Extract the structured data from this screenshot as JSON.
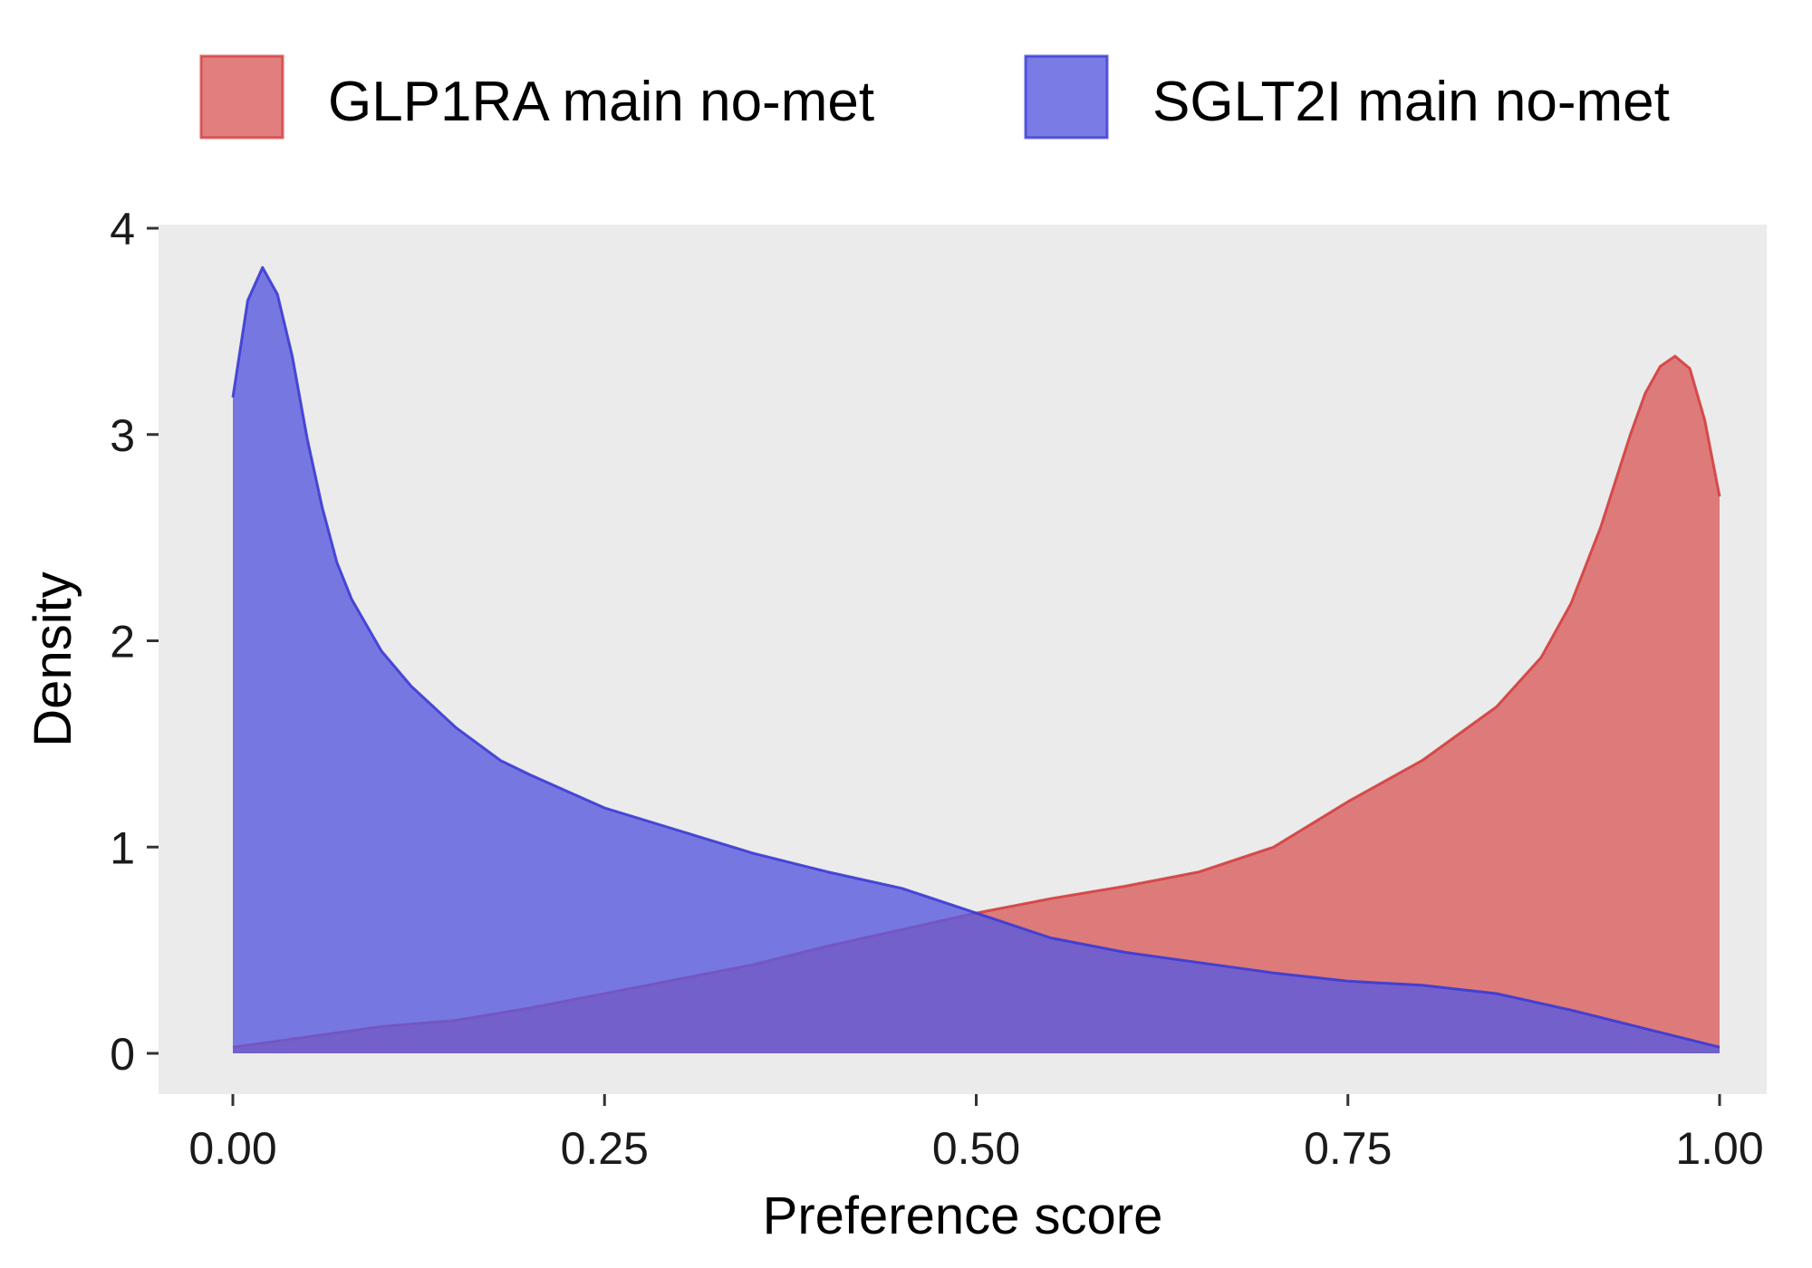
{
  "chart_data": {
    "type": "area",
    "xlabel": "Preference score",
    "ylabel": "Density",
    "xlim": [
      -0.05,
      1.05
    ],
    "ylim": [
      -0.18,
      4.05
    ],
    "x_ticks": [
      0.0,
      0.25,
      0.5,
      0.75,
      1.0
    ],
    "x_tick_labels": [
      "0.00",
      "0.25",
      "0.50",
      "0.75",
      "1.00"
    ],
    "y_ticks": [
      0,
      1,
      2,
      3,
      4
    ],
    "y_tick_labels": [
      "0",
      "1",
      "2",
      "3",
      "4"
    ],
    "grid": false,
    "panel_background": "#ebebeb",
    "legend_position": "top",
    "series": [
      {
        "name": "GLP1RA main no-met",
        "fill": "#d95f5f",
        "stroke": "#d43f3f",
        "points": [
          [
            0.0,
            0.03
          ],
          [
            0.05,
            0.08
          ],
          [
            0.1,
            0.13
          ],
          [
            0.15,
            0.16
          ],
          [
            0.2,
            0.22
          ],
          [
            0.25,
            0.29
          ],
          [
            0.3,
            0.36
          ],
          [
            0.35,
            0.43
          ],
          [
            0.4,
            0.52
          ],
          [
            0.45,
            0.6
          ],
          [
            0.5,
            0.68
          ],
          [
            0.55,
            0.75
          ],
          [
            0.6,
            0.81
          ],
          [
            0.65,
            0.88
          ],
          [
            0.7,
            1.0
          ],
          [
            0.75,
            1.22
          ],
          [
            0.8,
            1.42
          ],
          [
            0.85,
            1.68
          ],
          [
            0.88,
            1.92
          ],
          [
            0.9,
            2.18
          ],
          [
            0.92,
            2.55
          ],
          [
            0.94,
            3.0
          ],
          [
            0.95,
            3.2
          ],
          [
            0.96,
            3.33
          ],
          [
            0.97,
            3.38
          ],
          [
            0.98,
            3.32
          ],
          [
            0.99,
            3.07
          ],
          [
            1.0,
            2.7
          ]
        ]
      },
      {
        "name": "SGLT2I main no-met",
        "fill": "#5a5ae0",
        "stroke": "#3b3bd4",
        "points": [
          [
            0.0,
            3.18
          ],
          [
            0.01,
            3.65
          ],
          [
            0.02,
            3.81
          ],
          [
            0.03,
            3.68
          ],
          [
            0.04,
            3.38
          ],
          [
            0.05,
            2.98
          ],
          [
            0.06,
            2.65
          ],
          [
            0.07,
            2.38
          ],
          [
            0.08,
            2.2
          ],
          [
            0.1,
            1.95
          ],
          [
            0.12,
            1.78
          ],
          [
            0.15,
            1.58
          ],
          [
            0.18,
            1.42
          ],
          [
            0.2,
            1.35
          ],
          [
            0.25,
            1.19
          ],
          [
            0.3,
            1.08
          ],
          [
            0.35,
            0.97
          ],
          [
            0.4,
            0.88
          ],
          [
            0.45,
            0.8
          ],
          [
            0.5,
            0.68
          ],
          [
            0.55,
            0.56
          ],
          [
            0.6,
            0.49
          ],
          [
            0.65,
            0.44
          ],
          [
            0.7,
            0.39
          ],
          [
            0.75,
            0.35
          ],
          [
            0.8,
            0.33
          ],
          [
            0.85,
            0.29
          ],
          [
            0.9,
            0.21
          ],
          [
            0.95,
            0.12
          ],
          [
            1.0,
            0.03
          ]
        ]
      }
    ]
  }
}
